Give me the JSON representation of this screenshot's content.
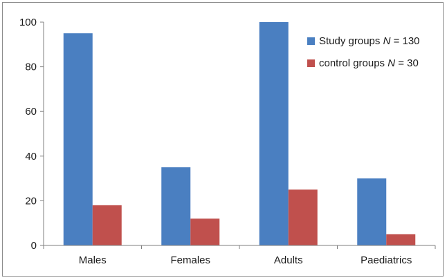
{
  "chart_data": {
    "type": "bar",
    "categories": [
      "Males",
      "Females",
      "Adults",
      "Paediatrics"
    ],
    "series": [
      {
        "name_main": "Study groups ",
        "name_italic": "N",
        "name_tail": " = 130",
        "color": "#4a7fc1",
        "values": [
          95,
          35,
          100,
          30
        ]
      },
      {
        "name_main": "control groups ",
        "name_italic": "N",
        "name_tail": " = 30",
        "color": "#c0504d",
        "values": [
          18,
          12,
          25,
          5
        ]
      }
    ],
    "ylim": [
      0,
      100
    ],
    "yticks": [
      "0",
      "20",
      "40",
      "60",
      "80",
      "100"
    ],
    "legend_position": "top-right",
    "grid": false
  }
}
